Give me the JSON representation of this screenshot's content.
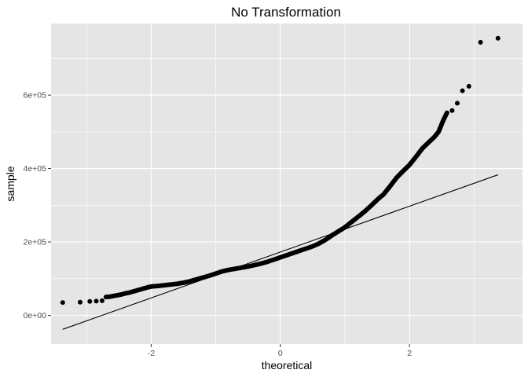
{
  "chart_data": {
    "type": "scatter",
    "title": "No Transformation",
    "xlabel": "theoretical",
    "ylabel": "sample",
    "xlim": [
      -3.55,
      3.75
    ],
    "ylim": [
      -78000,
      795000
    ],
    "x_ticks": [
      {
        "value": -2,
        "label": "-2"
      },
      {
        "value": 0,
        "label": "0"
      },
      {
        "value": 2,
        "label": "2"
      }
    ],
    "y_ticks": [
      {
        "value": 0,
        "label": "0e+00"
      },
      {
        "value": 200000,
        "label": "2e+05"
      },
      {
        "value": 400000,
        "label": "4e+05"
      },
      {
        "value": 600000,
        "label": "6e+05"
      }
    ],
    "grid": true,
    "background": "#e5e5e5",
    "grid_color": "#ffffff",
    "point_color": "#000000",
    "reference_line": {
      "x": [
        -3.37,
        3.37
      ],
      "y": [
        -38000,
        383000
      ],
      "color": "#000000"
    },
    "points": [
      {
        "x": -3.37,
        "y": 35000
      },
      {
        "x": -3.1,
        "y": 36000
      },
      {
        "x": -2.95,
        "y": 38000
      },
      {
        "x": -2.85,
        "y": 39000
      },
      {
        "x": -2.76,
        "y": 40000
      },
      {
        "x": -2.7,
        "y": 50000
      },
      {
        "x": -2.64,
        "y": 51000
      },
      {
        "x": -2.58,
        "y": 53000
      },
      {
        "x": -2.52,
        "y": 55000
      },
      {
        "x": -2.46,
        "y": 57000
      },
      {
        "x": -2.4,
        "y": 60000
      },
      {
        "x": -2.34,
        "y": 62000
      },
      {
        "x": -2.28,
        "y": 65000
      },
      {
        "x": -2.22,
        "y": 68000
      },
      {
        "x": -2.16,
        "y": 71000
      },
      {
        "x": -2.1,
        "y": 74000
      },
      {
        "x": -2.04,
        "y": 77000
      },
      {
        "x": -1.98,
        "y": 79000
      },
      {
        "x": -1.9,
        "y": 80000
      },
      {
        "x": -1.8,
        "y": 82000
      },
      {
        "x": -1.7,
        "y": 84000
      },
      {
        "x": -1.6,
        "y": 86000
      },
      {
        "x": -1.5,
        "y": 89000
      },
      {
        "x": -1.4,
        "y": 93000
      },
      {
        "x": -1.3,
        "y": 98000
      },
      {
        "x": -1.2,
        "y": 103000
      },
      {
        "x": -1.1,
        "y": 108000
      },
      {
        "x": -1.0,
        "y": 114000
      },
      {
        "x": -0.9,
        "y": 120000
      },
      {
        "x": -0.8,
        "y": 124000
      },
      {
        "x": -0.7,
        "y": 127000
      },
      {
        "x": -0.6,
        "y": 130000
      },
      {
        "x": -0.5,
        "y": 133000
      },
      {
        "x": -0.4,
        "y": 137000
      },
      {
        "x": -0.3,
        "y": 141000
      },
      {
        "x": -0.2,
        "y": 146000
      },
      {
        "x": -0.1,
        "y": 152000
      },
      {
        "x": 0.0,
        "y": 158000
      },
      {
        "x": 0.1,
        "y": 164000
      },
      {
        "x": 0.2,
        "y": 170000
      },
      {
        "x": 0.3,
        "y": 176000
      },
      {
        "x": 0.4,
        "y": 182000
      },
      {
        "x": 0.5,
        "y": 188000
      },
      {
        "x": 0.6,
        "y": 196000
      },
      {
        "x": 0.7,
        "y": 206000
      },
      {
        "x": 0.8,
        "y": 218000
      },
      {
        "x": 0.9,
        "y": 229000
      },
      {
        "x": 1.0,
        "y": 240000
      },
      {
        "x": 1.1,
        "y": 254000
      },
      {
        "x": 1.2,
        "y": 268000
      },
      {
        "x": 1.3,
        "y": 282000
      },
      {
        "x": 1.4,
        "y": 298000
      },
      {
        "x": 1.5,
        "y": 315000
      },
      {
        "x": 1.6,
        "y": 330000
      },
      {
        "x": 1.7,
        "y": 352000
      },
      {
        "x": 1.8,
        "y": 375000
      },
      {
        "x": 1.9,
        "y": 393000
      },
      {
        "x": 2.0,
        "y": 410000
      },
      {
        "x": 2.1,
        "y": 432000
      },
      {
        "x": 2.2,
        "y": 455000
      },
      {
        "x": 2.3,
        "y": 472000
      },
      {
        "x": 2.38,
        "y": 485000
      },
      {
        "x": 2.45,
        "y": 500000
      },
      {
        "x": 2.52,
        "y": 530000
      },
      {
        "x": 2.58,
        "y": 552000
      },
      {
        "x": 2.66,
        "y": 558000
      },
      {
        "x": 2.74,
        "y": 578000
      },
      {
        "x": 2.82,
        "y": 612000
      },
      {
        "x": 2.92,
        "y": 624000
      },
      {
        "x": 3.1,
        "y": 744000
      },
      {
        "x": 3.37,
        "y": 755000
      }
    ]
  }
}
